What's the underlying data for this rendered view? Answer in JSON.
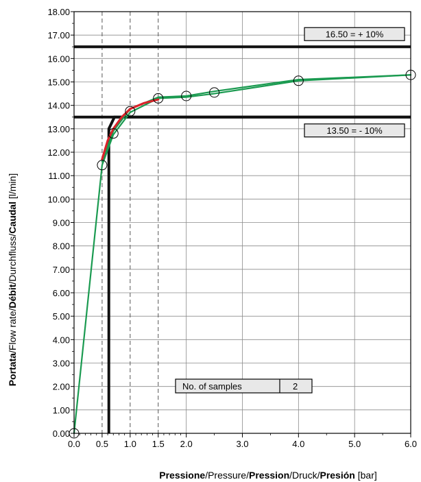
{
  "chart_data": {
    "type": "line",
    "xlabel_parts": [
      {
        "text": "Pressione",
        "bold": true
      },
      {
        "text": "/Pressure/",
        "bold": false
      },
      {
        "text": "Pression",
        "bold": true
      },
      {
        "text": "/Druck/",
        "bold": false
      },
      {
        "text": "Presión",
        "bold": true
      },
      {
        "text": " [bar]",
        "bold": false
      }
    ],
    "ylabel_parts": [
      {
        "text": "Portata",
        "bold": true
      },
      {
        "text": "/Flow rate/",
        "bold": false
      },
      {
        "text": "Débit",
        "bold": true
      },
      {
        "text": "/Durchfluss/",
        "bold": false
      },
      {
        "text": "Caudal",
        "bold": true
      },
      {
        "text": "  [l/min]",
        "bold": false
      }
    ],
    "xlim": [
      0,
      6
    ],
    "ylim": [
      0,
      18
    ],
    "x_ticks": [
      {
        "value": 0,
        "label": "0.0"
      },
      {
        "value": 0.5,
        "label": "0.5"
      },
      {
        "value": 1.0,
        "label": "1.0"
      },
      {
        "value": 1.5,
        "label": "1.5"
      },
      {
        "value": 2.0,
        "label": "2.0"
      },
      {
        "value": 3.0,
        "label": "3.0"
      },
      {
        "value": 4.0,
        "label": "4.0"
      },
      {
        "value": 5.0,
        "label": "5.0"
      },
      {
        "value": 6.0,
        "label": "6.0"
      }
    ],
    "x_minor_ticks": [
      0.1,
      0.2,
      0.3,
      0.4,
      0.6,
      0.7,
      0.8,
      0.9,
      1.1,
      1.2,
      1.3,
      1.4,
      1.6,
      1.7,
      1.8,
      1.9,
      2.5,
      3.5,
      4.5,
      5.5
    ],
    "y_ticks": [
      "0.00",
      "1.00",
      "2.00",
      "3.00",
      "4.00",
      "5.00",
      "6.00",
      "7.00",
      "8.00",
      "9.00",
      "10.00",
      "11.00",
      "12.00",
      "13.00",
      "14.00",
      "15.00",
      "16.00",
      "17.00",
      "18.00"
    ],
    "grid": true,
    "dashed_vlines": [
      0.5,
      1.0,
      1.5
    ],
    "thresholds": [
      {
        "value": 16.5,
        "label": "16.50 = + 10%"
      },
      {
        "value": 13.5,
        "label": "13.50 = - 10%"
      }
    ],
    "limit_curve": [
      [
        0.62,
        0
      ],
      [
        0.62,
        13.0
      ],
      [
        0.72,
        13.5
      ],
      [
        6.0,
        13.5
      ]
    ],
    "samples": [
      [
        0.0,
        0.0
      ],
      [
        0.5,
        11.45
      ],
      [
        0.7,
        12.8
      ],
      [
        1.0,
        13.75
      ],
      [
        1.5,
        14.3
      ],
      [
        2.0,
        14.4
      ],
      [
        2.5,
        14.55
      ],
      [
        4.0,
        15.05
      ],
      [
        6.0,
        15.3
      ]
    ],
    "series": [
      {
        "color": "#1a9a50",
        "points": [
          [
            0.0,
            0.0
          ],
          [
            0.5,
            11.45
          ],
          [
            0.7,
            12.75
          ],
          [
            1.0,
            13.7
          ],
          [
            1.5,
            14.3
          ],
          [
            2.0,
            14.35
          ],
          [
            2.5,
            14.5
          ],
          [
            4.0,
            15.05
          ],
          [
            6.0,
            15.3
          ]
        ]
      },
      {
        "color": "#1a9a50",
        "points": [
          [
            0.5,
            11.6
          ],
          [
            0.7,
            12.9
          ],
          [
            1.0,
            13.85
          ],
          [
            1.5,
            14.35
          ],
          [
            2.0,
            14.4
          ],
          [
            2.5,
            14.6
          ],
          [
            4.0,
            15.1
          ],
          [
            6.0,
            15.3
          ]
        ]
      },
      {
        "color": "#d8232a",
        "points": [
          [
            0.5,
            11.7
          ],
          [
            0.6,
            12.5
          ],
          [
            0.7,
            13.0
          ],
          [
            0.85,
            13.5
          ],
          [
            1.0,
            13.85
          ],
          [
            1.25,
            14.1
          ],
          [
            1.5,
            14.25
          ]
        ]
      }
    ],
    "samples_box": {
      "label": "No. of samples",
      "value": "2"
    }
  }
}
